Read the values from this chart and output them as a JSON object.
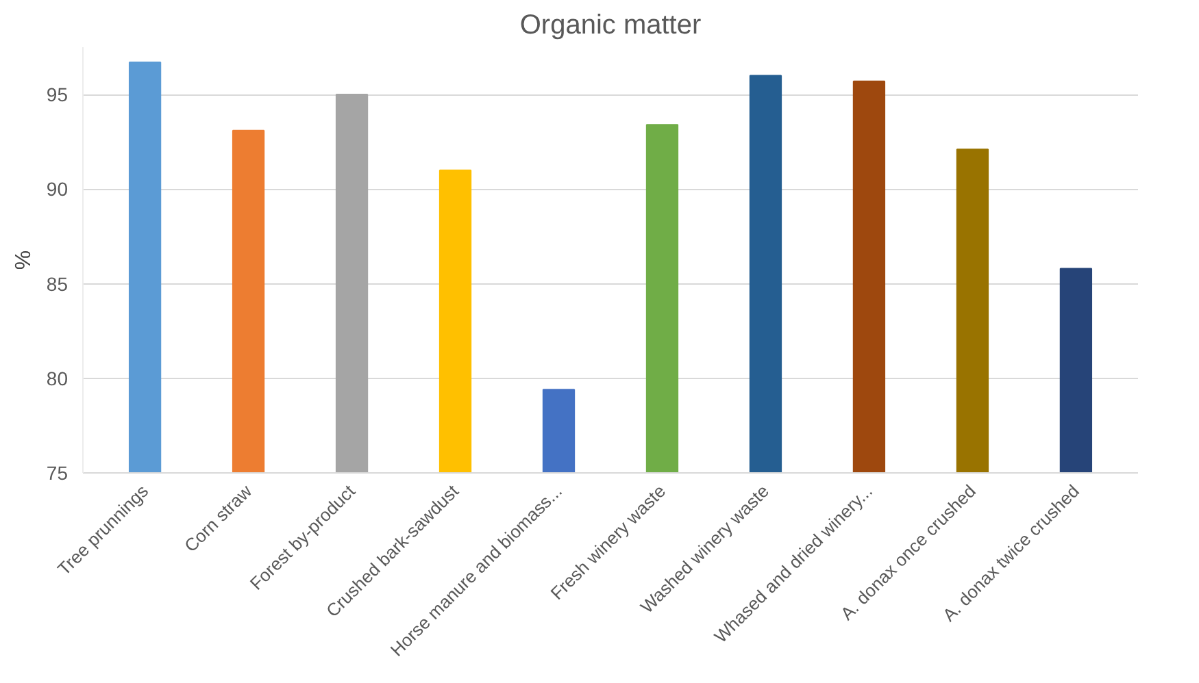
{
  "chart_data": {
    "type": "bar",
    "title": "Organic matter",
    "ylabel": "%",
    "categories": [
      "Tree prunnings",
      "Corn straw",
      "Forest by-product",
      "Crushed bark-sawdust",
      "Horse manure and biomass...",
      "Fresh winery waste",
      "Washed winery waste",
      "Whased and dried winery...",
      "A. donax once crushed",
      "A. donax twice crushed"
    ],
    "values": [
      96.7,
      93.1,
      95.0,
      91.0,
      79.4,
      93.4,
      96.0,
      95.7,
      92.1,
      85.8
    ],
    "colors": [
      "#5b9bd5",
      "#ed7d31",
      "#a5a5a5",
      "#ffc000",
      "#4472c4",
      "#70ad47",
      "#255e91",
      "#9e480e",
      "#997300",
      "#264478"
    ],
    "ylim": [
      75,
      97.5
    ],
    "yticks": [
      75,
      80,
      85,
      90,
      95
    ],
    "grid": "y"
  }
}
